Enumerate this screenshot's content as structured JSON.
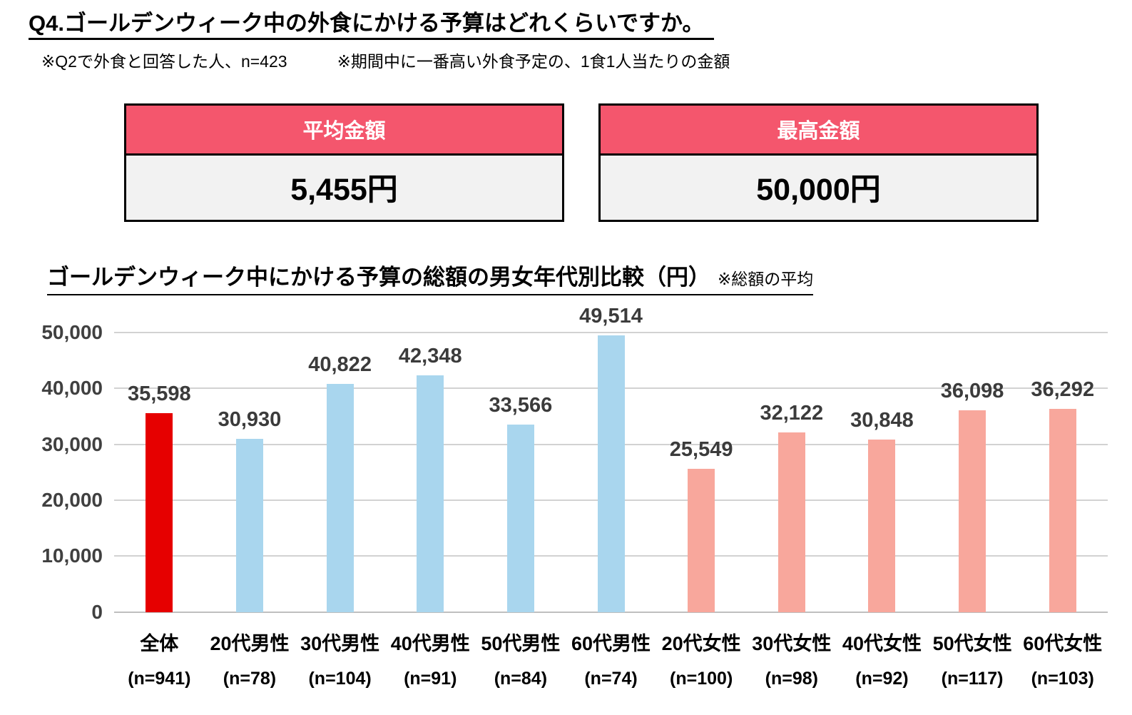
{
  "page": {
    "title": "Q4.ゴールデンウィーク中の外食にかける予算はどれくらいですか。",
    "note_left": "※Q2で外食と回答した人、n=423",
    "note_right": "※期間中に一番高い外食予定の、1食1人当たりの金額"
  },
  "summary_boxes": {
    "average": {
      "label": "平均金額",
      "value": "5,455円"
    },
    "max": {
      "label": "最高金額",
      "value": "50,000円"
    }
  },
  "chart_title": "ゴールデンウィーク中にかける予算の総額の男女年代別比較（円）",
  "chart_title_note": "※総額の平均",
  "colors": {
    "header_bg": "#f4566d",
    "bar_overall": "#e60000",
    "bar_male": "#a9d6ee",
    "bar_female": "#f8a79c"
  },
  "chart_data": {
    "type": "bar",
    "title": "ゴールデンウィーク中にかける予算の総額の男女年代別比較（円）",
    "subtitle": "※総額の平均",
    "categories": [
      "全体",
      "20代男性",
      "30代男性",
      "40代男性",
      "50代男性",
      "60代男性",
      "20代女性",
      "30代女性",
      "40代女性",
      "50代女性",
      "60代女性"
    ],
    "sample_sizes": [
      "(n=941)",
      "(n=78)",
      "(n=104)",
      "(n=91)",
      "(n=84)",
      "(n=74)",
      "(n=100)",
      "(n=98)",
      "(n=92)",
      "(n=117)",
      "(n=103)"
    ],
    "values": [
      35598,
      30930,
      40822,
      42348,
      33566,
      49514,
      25549,
      32122,
      30848,
      36098,
      36292
    ],
    "value_labels": [
      "35,598",
      "30,930",
      "40,822",
      "42,348",
      "33,566",
      "49,514",
      "25,549",
      "32,122",
      "30,848",
      "36,098",
      "36,292"
    ],
    "bar_colors": [
      "#e60000",
      "#a9d6ee",
      "#a9d6ee",
      "#a9d6ee",
      "#a9d6ee",
      "#a9d6ee",
      "#f8a79c",
      "#f8a79c",
      "#f8a79c",
      "#f8a79c",
      "#f8a79c"
    ],
    "ylim": [
      0,
      50000
    ],
    "ytick_values": [
      0,
      10000,
      20000,
      30000,
      40000,
      50000
    ],
    "ytick_labels": [
      "0",
      "10,000",
      "20,000",
      "30,000",
      "40,000",
      "50,000"
    ],
    "grid": true,
    "legend": false,
    "xlabel": "",
    "ylabel": ""
  }
}
